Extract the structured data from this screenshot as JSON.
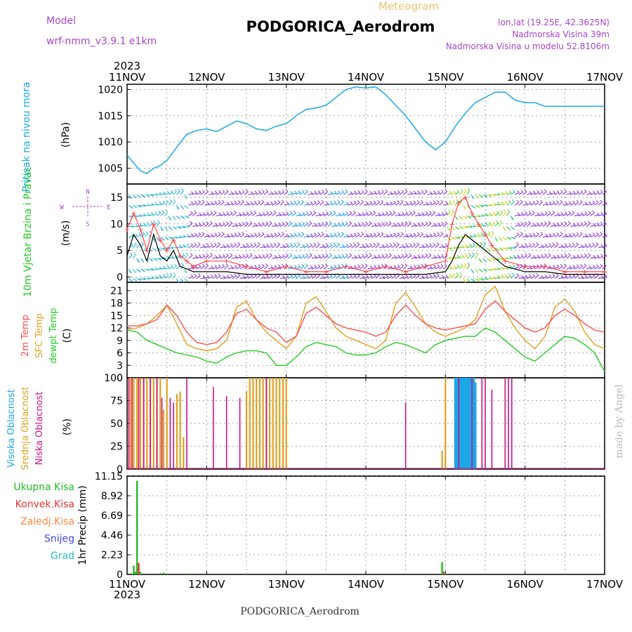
{
  "header": {
    "model_label": "Model",
    "model_name": "wrf-nmm_v3.9.1  e1km",
    "product": "Meteogram",
    "station": "PODGORICA_Aerodrom",
    "lonlat": "lon,lat (19.25E, 42.3625N)",
    "altitude": "Nadmorska Visina 39m",
    "model_altitude": "Nadmorska Visina u modelu 52.8106m",
    "year": "2023",
    "footer_station": "PODGORICA_Aerodrom",
    "credit": "made by Angel"
  },
  "colors": {
    "pressure": "#1ba7e8",
    "wind_speed": "#000000",
    "wind_gust": "#ff4444",
    "temp_2m": "#ff4d4d",
    "temp_sfc": "#e0a020",
    "dewpoint": "#22cc22",
    "cloud_high": "#1ba7e8",
    "cloud_mid": "#e0a020",
    "cloud_low": "#cc1188",
    "precip_total": "#22bb22",
    "precip_conv": "#ee3333",
    "precip_frozen": "#ff8844",
    "snow": "#4444ee",
    "hail": "#22bbbb",
    "title_purple": "#aa44cc",
    "title_orange": "#f0c070"
  },
  "chart_data": [
    {
      "type": "line",
      "name": "pressure",
      "ylabel": "Pritisak na nivou mora",
      "unit": "(hPa)",
      "x_ticks": [
        "11NOV",
        "12NOV",
        "13NOV",
        "14NOV",
        "15NOV",
        "16NOV",
        "17NOV"
      ],
      "x_range": [
        0,
        144
      ],
      "ylim": [
        1002,
        1021
      ],
      "y_ticks": [
        1005,
        1010,
        1015,
        1020
      ],
      "grid": true,
      "series": [
        {
          "x": [
            0,
            2,
            4,
            6,
            8,
            10,
            12,
            15,
            18,
            21,
            24,
            27,
            30,
            33,
            36,
            39,
            42,
            45,
            48,
            51,
            54,
            57,
            60,
            63,
            66,
            69,
            72,
            75,
            78,
            81,
            84,
            87,
            90,
            93,
            96,
            99,
            102,
            105,
            108,
            111,
            114,
            117,
            120,
            123,
            126,
            129,
            132,
            135,
            138,
            141,
            144
          ],
          "values": [
            1007.5,
            1006,
            1004.5,
            1004,
            1005,
            1005.5,
            1006.5,
            1009,
            1011.5,
            1012.2,
            1012.5,
            1012,
            1013,
            1014,
            1013.5,
            1012.5,
            1012.2,
            1013,
            1013.5,
            1015,
            1016.2,
            1016.5,
            1017,
            1018.5,
            1020,
            1020.5,
            1020.3,
            1020.5,
            1019,
            1017,
            1015,
            1012.5,
            1010,
            1008.5,
            1010,
            1013,
            1015.5,
            1017.5,
            1018.5,
            1019.5,
            1019.5,
            1018,
            1017.5,
            1017.5,
            1016.8,
            1016.8,
            1016.8,
            1016.8,
            1016.8,
            1016.8,
            1016.8
          ]
        }
      ]
    },
    {
      "type": "line",
      "name": "wind",
      "ylabel": "10m Vjetar Brzina i Pravac",
      "unit": "(m/s)",
      "compass": [
        "N",
        "W",
        "E",
        "S"
      ],
      "ylim": [
        -1,
        17.5
      ],
      "y_ticks": [
        0,
        5,
        10,
        15
      ],
      "grid": true,
      "series": [
        {
          "name": "speed",
          "x": [
            0,
            2,
            4,
            6,
            8,
            10,
            12,
            14,
            16,
            18,
            20,
            24,
            30,
            36,
            42,
            48,
            54,
            60,
            66,
            72,
            78,
            84,
            90,
            96,
            98,
            100,
            102,
            104,
            106,
            108,
            110,
            114,
            120,
            126,
            132,
            138,
            144
          ],
          "values": [
            4,
            8,
            6,
            3,
            8,
            4,
            3,
            5,
            2,
            1.5,
            1,
            1,
            1,
            0.5,
            0.5,
            0.5,
            0.5,
            0.5,
            0.5,
            0.5,
            0.5,
            0.5,
            0.5,
            1,
            3,
            6,
            8,
            7,
            6,
            5,
            4,
            2,
            1,
            1,
            0.5,
            0.5,
            0.5
          ]
        },
        {
          "name": "gust",
          "x": [
            0,
            2,
            4,
            6,
            8,
            10,
            12,
            14,
            16,
            18,
            20,
            24,
            30,
            36,
            42,
            48,
            54,
            60,
            66,
            72,
            78,
            84,
            90,
            96,
            98,
            100,
            102,
            104,
            106,
            108,
            110,
            114,
            120,
            126,
            132,
            138,
            144
          ],
          "values": [
            9,
            12,
            9,
            5,
            10,
            7,
            5,
            7,
            4,
            3,
            2,
            3,
            3,
            2,
            1,
            2,
            1,
            1,
            2,
            1,
            2,
            1,
            2,
            3,
            10,
            14,
            15,
            12,
            10,
            8,
            6,
            3,
            2,
            2,
            1,
            1,
            1
          ]
        }
      ]
    },
    {
      "type": "line",
      "name": "temperature",
      "ylabel": "2m Temp / SFC Temp / dewpt Temp",
      "unit": "(C)",
      "ylim": [
        0,
        23
      ],
      "y_ticks": [
        0,
        3,
        6,
        9,
        12,
        15,
        18,
        21
      ],
      "grid": true,
      "series": [
        {
          "name": "2m Temp",
          "x": [
            0,
            3,
            6,
            9,
            12,
            15,
            18,
            21,
            24,
            27,
            30,
            33,
            36,
            39,
            42,
            45,
            48,
            51,
            54,
            57,
            60,
            63,
            66,
            69,
            72,
            75,
            78,
            81,
            84,
            87,
            90,
            93,
            96,
            99,
            102,
            105,
            108,
            111,
            114,
            117,
            120,
            123,
            126,
            129,
            132,
            135,
            138,
            141,
            144
          ],
          "values": [
            12.5,
            12.5,
            13,
            14,
            17.5,
            15,
            11,
            8.5,
            8,
            8.5,
            11,
            15.5,
            16.5,
            14,
            12,
            11,
            8.5,
            10,
            15.5,
            17,
            15,
            13,
            12,
            11.5,
            11,
            10,
            11,
            15,
            17.5,
            15,
            13,
            12,
            11.5,
            12,
            12.5,
            13,
            16.5,
            18.5,
            16,
            14,
            12,
            11,
            12,
            15,
            16.5,
            15,
            13,
            11.5,
            11
          ]
        },
        {
          "name": "SFC Temp",
          "x": [
            0,
            3,
            6,
            9,
            12,
            15,
            18,
            21,
            24,
            27,
            30,
            33,
            36,
            39,
            42,
            45,
            48,
            51,
            54,
            57,
            60,
            63,
            66,
            69,
            72,
            75,
            78,
            81,
            84,
            87,
            90,
            93,
            96,
            99,
            102,
            105,
            108,
            111,
            114,
            117,
            120,
            123,
            126,
            129,
            132,
            135,
            138,
            141,
            144
          ],
          "values": [
            11.5,
            12,
            13,
            15,
            17.5,
            13,
            8,
            7,
            6.5,
            7,
            9,
            17,
            18.5,
            14,
            11,
            9,
            7,
            10,
            18,
            19.5,
            16,
            12,
            10,
            9,
            8,
            7,
            9,
            18,
            20.5,
            17,
            13,
            11,
            10,
            11,
            12,
            14,
            20,
            22,
            16,
            12,
            9,
            7,
            10,
            17,
            19,
            16,
            11,
            8,
            7
          ]
        },
        {
          "name": "dewpt Temp",
          "x": [
            0,
            3,
            6,
            9,
            12,
            15,
            18,
            21,
            24,
            27,
            30,
            33,
            36,
            39,
            42,
            45,
            48,
            51,
            54,
            57,
            60,
            63,
            66,
            69,
            72,
            75,
            78,
            81,
            84,
            87,
            90,
            93,
            96,
            99,
            102,
            105,
            108,
            111,
            114,
            117,
            120,
            123,
            126,
            129,
            132,
            135,
            138,
            141,
            144
          ],
          "values": [
            11.5,
            11,
            9,
            8,
            7,
            6,
            5.5,
            5,
            4,
            3.5,
            5,
            6,
            6.5,
            6.5,
            6,
            3,
            3,
            5,
            7.5,
            8.5,
            8,
            7.5,
            6,
            5.5,
            5.5,
            6,
            7.5,
            8.5,
            8,
            7,
            6,
            8,
            9,
            9.5,
            10,
            10,
            12,
            11,
            9,
            7,
            5,
            4,
            6,
            8,
            10,
            9.5,
            8,
            6,
            1.5
          ]
        }
      ]
    },
    {
      "type": "bar",
      "name": "cloudiness",
      "ylabel": "Visoka Oblacnost / Srednja Oblacnost / Niska Oblacnost",
      "unit": "(%)",
      "ylim": [
        0,
        100
      ],
      "y_ticks": [
        0,
        25,
        50,
        75,
        100
      ],
      "grid": true,
      "series": [
        {
          "name": "Visoka Oblacnost",
          "x": [
            99,
            99.5,
            100,
            100.5,
            101,
            101.5,
            102,
            102.5,
            103,
            103.5,
            104,
            104.5,
            105
          ],
          "values": [
            100,
            100,
            100,
            100,
            100,
            100,
            100,
            100,
            100,
            100,
            100,
            100,
            95
          ]
        },
        {
          "name": "Srednja Oblacnost",
          "x": [
            1,
            2,
            3,
            4,
            5,
            6,
            7,
            8,
            9,
            10,
            11,
            12,
            15,
            16,
            17,
            36,
            37,
            38,
            39,
            40,
            41,
            42,
            43,
            44,
            45,
            46,
            47,
            48,
            95,
            96
          ],
          "values": [
            100,
            100,
            100,
            100,
            100,
            100,
            100,
            100,
            100,
            100,
            65,
            100,
            82,
            85,
            35,
            85,
            100,
            100,
            100,
            100,
            100,
            100,
            100,
            100,
            100,
            100,
            100,
            100,
            20,
            100
          ]
        },
        {
          "name": "Niska Oblacnost",
          "x": [
            0.5,
            1.5,
            3.5,
            5,
            7,
            9,
            10.5,
            13,
            14,
            18,
            26,
            30,
            34,
            42,
            84,
            100,
            104,
            107,
            108,
            110,
            114,
            115,
            116
          ],
          "values": [
            100,
            100,
            100,
            100,
            100,
            100,
            78,
            78,
            73,
            100,
            90,
            80,
            78,
            100,
            73,
            100,
            100,
            100,
            100,
            87,
            100,
            100,
            100
          ],
          "note": "Approximate read-off of purple vertical lines"
        }
      ]
    },
    {
      "type": "bar",
      "name": "precipitation",
      "ylabel": "1hr Precip (mm)",
      "legend": [
        "Ukupna Kisa",
        "Konvek.Kisa",
        "Zaledj.Kisa",
        "Snijeg",
        "Grad"
      ],
      "ylim": [
        0,
        11.15
      ],
      "y_ticks": [
        "0",
        "2.23",
        "4.46",
        "6.69",
        "8.92",
        "11.15"
      ],
      "grid": true,
      "series": [
        {
          "name": "Ukupna Kisa",
          "x": [
            2,
            2.5,
            3,
            4,
            10,
            11,
            12,
            19,
            95,
            96
          ],
          "values": [
            1.0,
            0.3,
            10.6,
            0.3,
            0.15,
            0.2,
            0.1,
            0.1,
            1.4,
            0.1
          ]
        },
        {
          "name": "Konvek.Kisa",
          "x": [
            3.5,
            95.5
          ],
          "values": [
            1.3,
            0.3
          ]
        }
      ]
    }
  ]
}
